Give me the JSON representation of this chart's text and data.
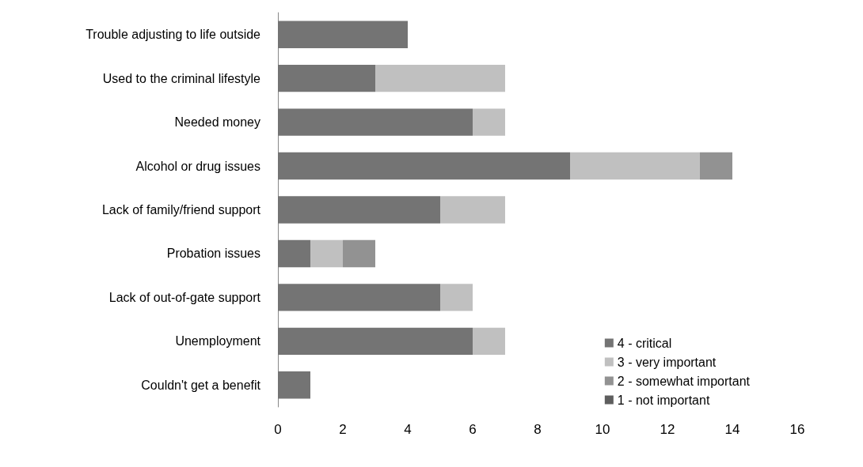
{
  "chart_data": {
    "type": "bar",
    "orientation": "horizontal",
    "stacked": true,
    "categories": [
      "Trouble adjusting to life outside",
      "Used to the criminal lifestyle",
      "Needed money",
      "Alcohol or drug issues",
      "Lack of family/friend support",
      "Probation issues",
      "Lack of out-of-gate support",
      "Unemployment",
      "Couldn't get a benefit"
    ],
    "series": [
      {
        "name": "4 - critical",
        "color": "#747474",
        "values": [
          4,
          3,
          6,
          9,
          5,
          1,
          5,
          6,
          1
        ]
      },
      {
        "name": "3 - very important",
        "color": "#c0c0c0",
        "values": [
          0,
          4,
          1,
          4,
          2,
          1,
          1,
          1,
          0
        ]
      },
      {
        "name": "2 - somewhat important",
        "color": "#929292",
        "values": [
          0,
          0,
          0,
          1,
          0,
          1,
          0,
          0,
          0
        ]
      },
      {
        "name": "1 - not important",
        "color": "#5e5e5e",
        "values": [
          0,
          0,
          0,
          0,
          0,
          0,
          0,
          0,
          0
        ]
      }
    ],
    "xlim": [
      0,
      16
    ],
    "xticks": [
      0,
      2,
      4,
      6,
      8,
      10,
      12,
      14,
      16
    ],
    "grid": false,
    "legend": "bottom right"
  }
}
